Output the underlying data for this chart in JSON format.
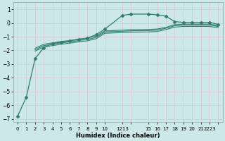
{
  "background_color": "#cce8e8",
  "grid_color": "#d8c8d8",
  "line_color": "#2e7d6e",
  "xlabel": "Humidex (Indice chaleur)",
  "xlim": [
    -0.5,
    23.5
  ],
  "ylim": [
    -7.2,
    1.5
  ],
  "yticks": [
    1,
    0,
    -1,
    -2,
    -3,
    -4,
    -5,
    -6,
    -7
  ],
  "series": [
    {
      "x": [
        0,
        1,
        2,
        3,
        4,
        5,
        6,
        7,
        8,
        9,
        10,
        12,
        13,
        15,
        16,
        17,
        18,
        19,
        20,
        21,
        22,
        23
      ],
      "y": [
        -6.8,
        -5.4,
        -2.6,
        -1.8,
        -1.5,
        -1.4,
        -1.3,
        -1.2,
        -1.1,
        -0.85,
        -0.45,
        0.55,
        0.65,
        0.65,
        0.6,
        0.5,
        0.1,
        0.05,
        0.05,
        0.05,
        0.05,
        -0.1
      ],
      "marker": "D",
      "marker_size": 2.5,
      "linewidth": 0.9,
      "linestyle": "-"
    },
    {
      "x": [
        2,
        3,
        4,
        5,
        6,
        7,
        8,
        9,
        10,
        12,
        13,
        15,
        16,
        17,
        18,
        19,
        20,
        21,
        22,
        23
      ],
      "y": [
        -1.85,
        -1.55,
        -1.45,
        -1.35,
        -1.28,
        -1.18,
        -1.1,
        -0.95,
        -0.58,
        -0.52,
        -0.49,
        -0.47,
        -0.44,
        -0.32,
        -0.12,
        -0.08,
        -0.08,
        -0.08,
        -0.08,
        -0.18
      ],
      "marker": null,
      "linewidth": 0.8,
      "linestyle": "-"
    },
    {
      "x": [
        2,
        3,
        4,
        5,
        6,
        7,
        8,
        9,
        10,
        12,
        13,
        15,
        16,
        17,
        18,
        19,
        20,
        21,
        22,
        23
      ],
      "y": [
        -1.95,
        -1.65,
        -1.55,
        -1.45,
        -1.38,
        -1.28,
        -1.2,
        -1.05,
        -0.65,
        -0.6,
        -0.57,
        -0.55,
        -0.52,
        -0.38,
        -0.2,
        -0.15,
        -0.15,
        -0.15,
        -0.15,
        -0.25
      ],
      "marker": null,
      "linewidth": 0.8,
      "linestyle": "-"
    },
    {
      "x": [
        2,
        3,
        4,
        5,
        6,
        7,
        8,
        9,
        10,
        12,
        13,
        15,
        16,
        17,
        18,
        19,
        20,
        21,
        22,
        23
      ],
      "y": [
        -2.05,
        -1.75,
        -1.65,
        -1.55,
        -1.47,
        -1.37,
        -1.3,
        -1.15,
        -0.75,
        -0.7,
        -0.67,
        -0.65,
        -0.62,
        -0.48,
        -0.3,
        -0.25,
        -0.25,
        -0.25,
        -0.25,
        -0.35
      ],
      "marker": null,
      "linewidth": 0.8,
      "linestyle": "-"
    }
  ],
  "xtick_positions": [
    0,
    1,
    2,
    3,
    4,
    5,
    6,
    7,
    8,
    9,
    10,
    12,
    13,
    15,
    16,
    17,
    18,
    19,
    20,
    21,
    22,
    23
  ],
  "xtick_labels": [
    "0",
    "1",
    "2",
    "3",
    "4",
    "5",
    "6",
    "7",
    "8",
    "9",
    "10",
    "1213",
    "",
    "15",
    "16",
    "17",
    "18",
    "19",
    "20",
    "21",
    "2223",
    ""
  ]
}
